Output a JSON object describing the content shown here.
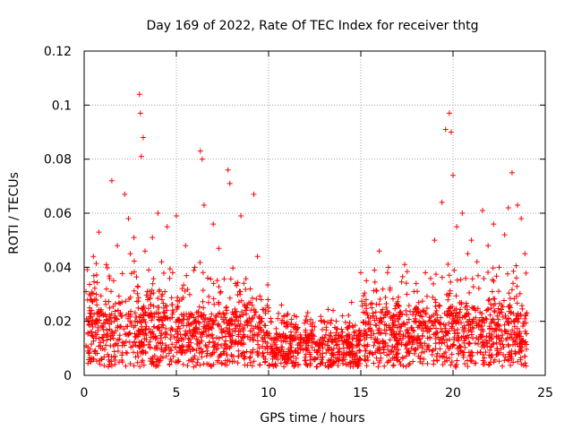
{
  "chart_data": {
    "type": "scatter",
    "title": "Day 169 of 2022, Rate Of TEC Index for receiver thtg",
    "xlabel": "GPS time / hours",
    "ylabel": "ROTI / TECUs",
    "xlim": [
      0,
      25
    ],
    "ylim": [
      0,
      0.12
    ],
    "x_ticks": [
      "0",
      "5",
      "10",
      "15",
      "20",
      "25"
    ],
    "y_ticks": [
      "0",
      "0.02",
      "0.04",
      "0.06",
      "0.08",
      "0.1",
      "0.12"
    ],
    "grid": true,
    "marker": "plus",
    "color": "#ff0000",
    "series": [
      {
        "x": [
          0.1,
          0.2,
          0.3,
          0.5,
          0.8,
          1.0,
          1.2,
          1.5,
          1.6,
          1.8,
          2.0,
          2.2,
          2.4,
          2.5,
          2.7,
          2.9,
          3.0,
          3.05,
          3.1,
          3.2,
          3.3,
          3.5,
          3.7,
          4.0,
          4.2,
          4.5,
          4.8,
          5.0,
          5.5,
          6.0,
          6.3,
          6.4,
          6.5,
          6.7,
          7.0,
          7.3,
          7.8,
          7.9,
          8.2,
          8.5,
          9.0,
          9.2,
          9.4,
          9.6,
          10.0,
          10.5,
          11.0,
          11.5,
          12.0,
          12.5,
          13.0,
          13.5,
          14.0,
          14.5,
          15.0,
          15.3,
          15.6,
          16.0,
          16.5,
          17.0,
          17.5,
          18.0,
          18.5,
          19.0,
          19.4,
          19.6,
          19.8,
          19.9,
          20.0,
          20.2,
          20.5,
          20.8,
          21.0,
          21.3,
          21.6,
          21.9,
          22.2,
          22.5,
          22.8,
          23.0,
          23.2,
          23.5,
          23.7,
          23.9
        ],
        "y": [
          0.031,
          0.009,
          0.025,
          0.044,
          0.053,
          0.018,
          0.041,
          0.072,
          0.035,
          0.048,
          0.022,
          0.067,
          0.058,
          0.045,
          0.051,
          0.033,
          0.104,
          0.097,
          0.081,
          0.088,
          0.046,
          0.039,
          0.051,
          0.06,
          0.042,
          0.055,
          0.038,
          0.059,
          0.048,
          0.04,
          0.083,
          0.08,
          0.063,
          0.036,
          0.056,
          0.047,
          0.076,
          0.071,
          0.034,
          0.059,
          0.032,
          0.067,
          0.044,
          0.028,
          0.025,
          0.021,
          0.019,
          0.017,
          0.016,
          0.018,
          0.02,
          0.024,
          0.022,
          0.027,
          0.038,
          0.035,
          0.025,
          0.046,
          0.04,
          0.026,
          0.03,
          0.034,
          0.038,
          0.05,
          0.064,
          0.091,
          0.097,
          0.09,
          0.074,
          0.055,
          0.06,
          0.045,
          0.05,
          0.042,
          0.061,
          0.048,
          0.056,
          0.04,
          0.052,
          0.062,
          0.075,
          0.063,
          0.058,
          0.045
        ]
      }
    ]
  }
}
